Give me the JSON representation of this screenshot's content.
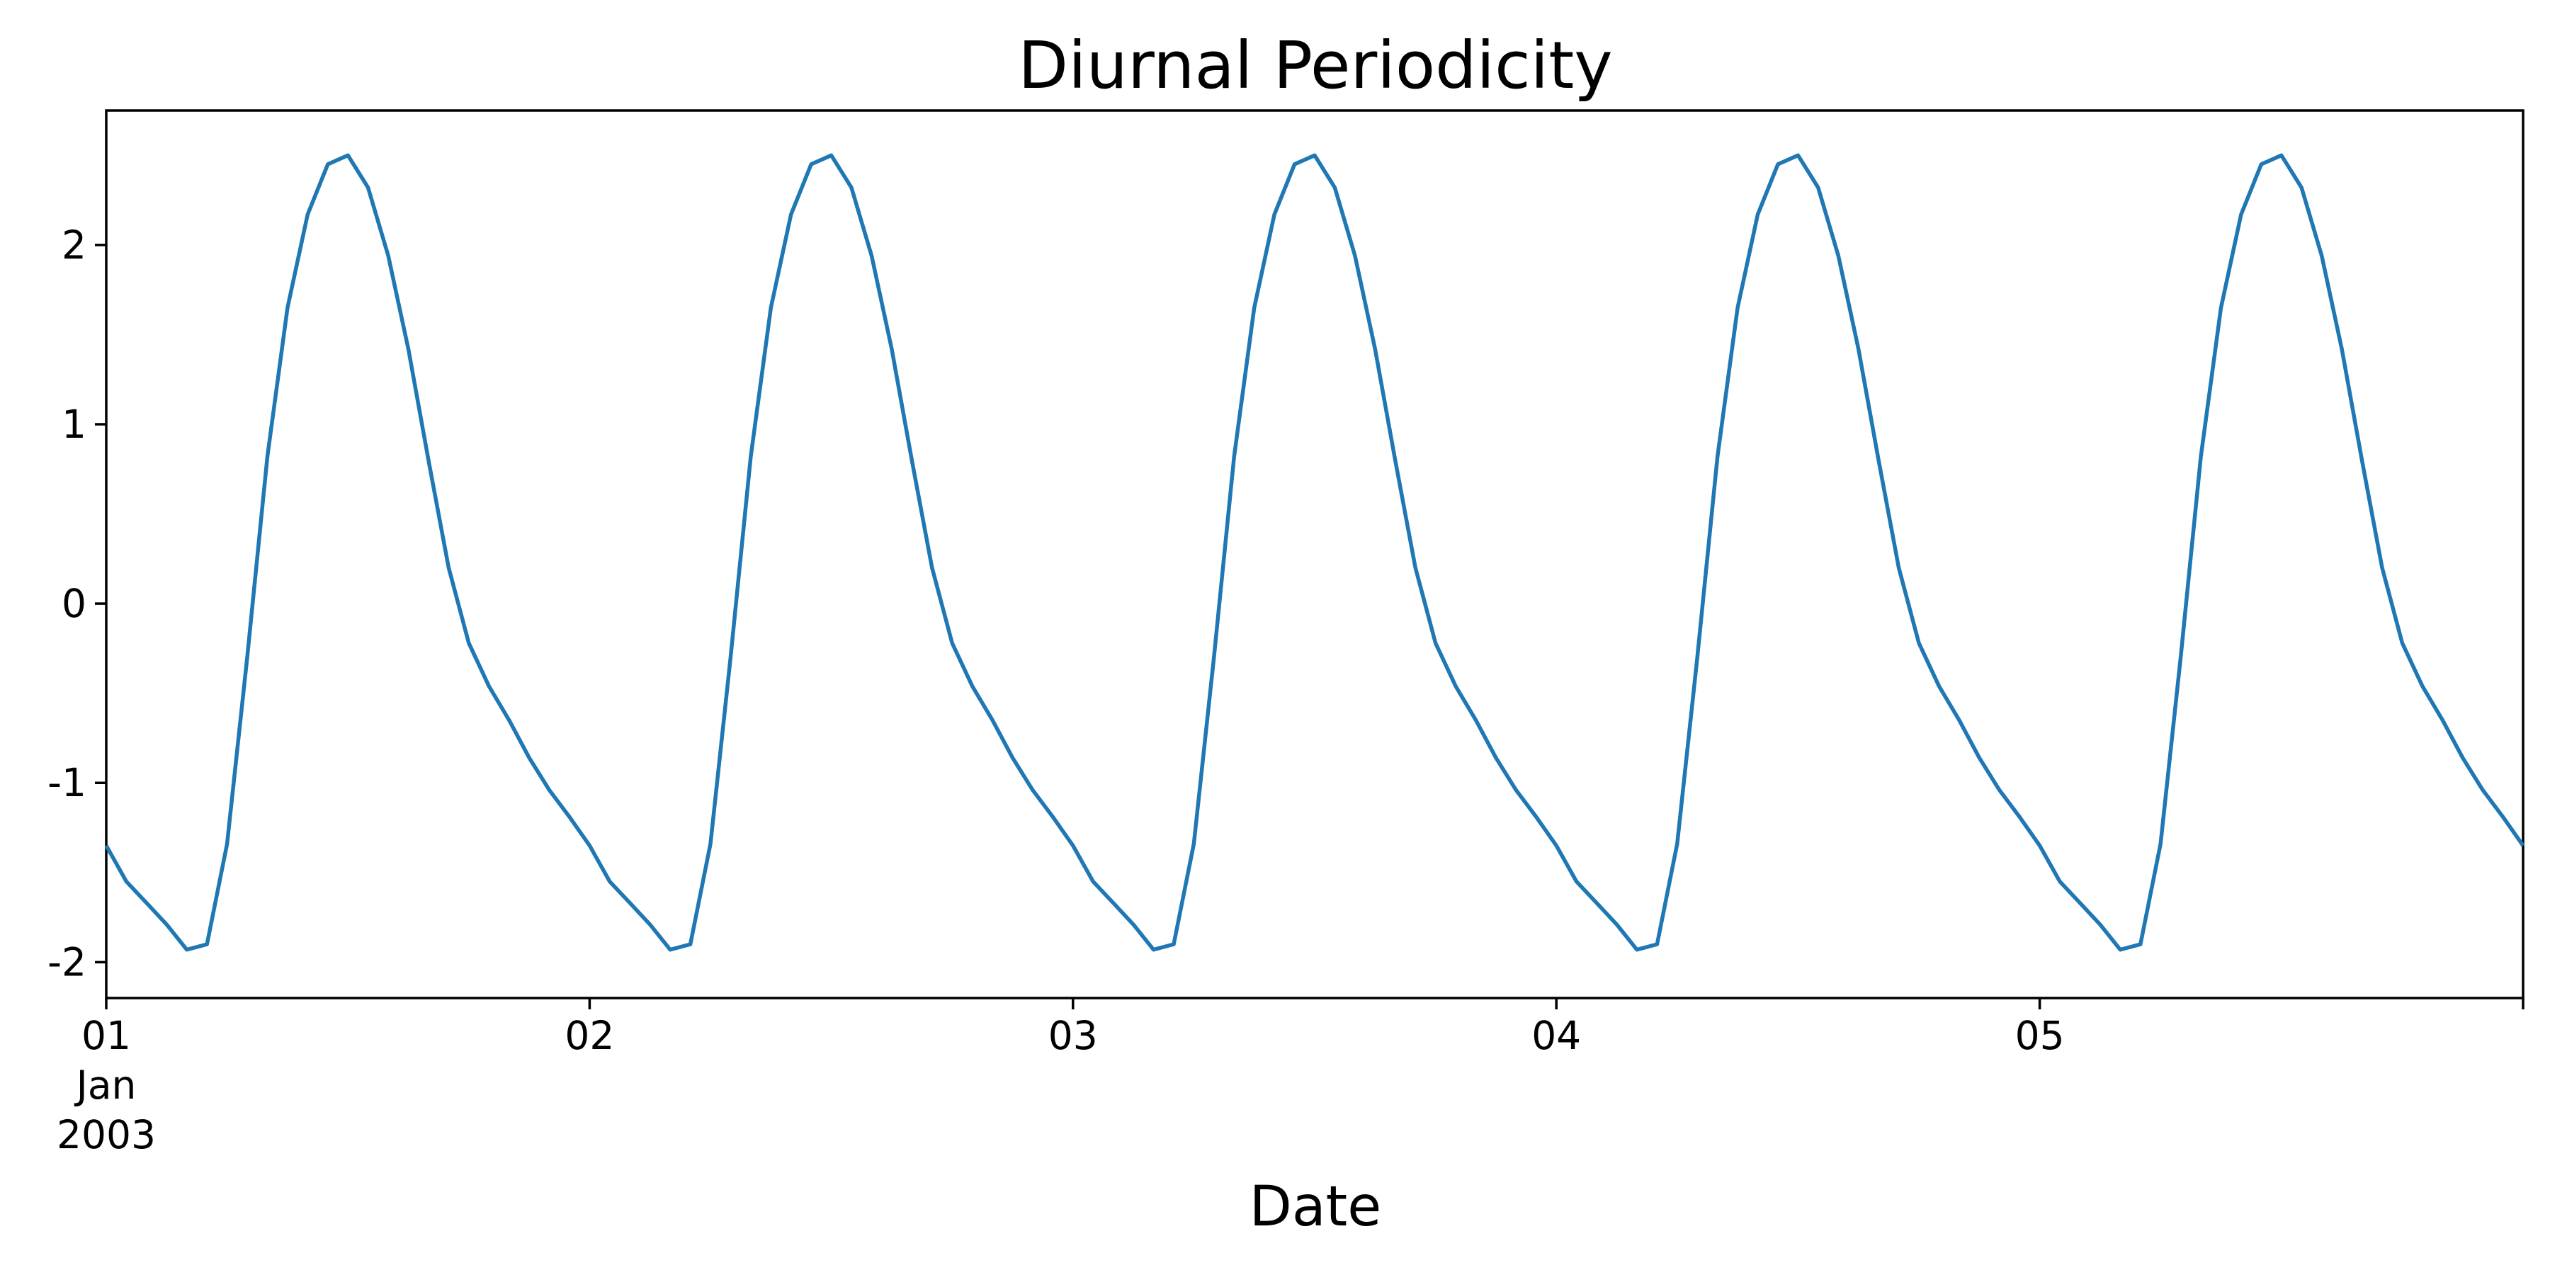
{
  "chart_data": {
    "type": "line",
    "title": "Diurnal Periodicity",
    "xlabel": "Date",
    "ylabel": "",
    "x_start": "2003-01-01 00:00",
    "x_end": "2003-01-06 00:00",
    "ylim": [
      -2.2,
      2.75
    ],
    "yticks": [
      {
        "value": 2,
        "label": "2"
      },
      {
        "value": 1,
        "label": "1"
      },
      {
        "value": 0,
        "label": "0"
      },
      {
        "value": -1,
        "label": "-1"
      },
      {
        "value": -2,
        "label": "-2"
      }
    ],
    "xticks": [
      {
        "date": "2003-01-01",
        "label": "01",
        "sub": [
          "Jan",
          "2003"
        ]
      },
      {
        "date": "2003-01-02",
        "label": "02"
      },
      {
        "date": "2003-01-03",
        "label": "03"
      },
      {
        "date": "2003-01-04",
        "label": "04"
      },
      {
        "date": "2003-01-05",
        "label": "05"
      }
    ],
    "grid": false,
    "series": [
      {
        "color": "#1f77b4",
        "hours": [
          0,
          1,
          2,
          3,
          4,
          5,
          6,
          7,
          8,
          9,
          10,
          11,
          12,
          13,
          14,
          15,
          16,
          17,
          18,
          19,
          20,
          21,
          22,
          23
        ],
        "values": [
          -1.35,
          -1.55,
          -1.67,
          -1.79,
          -1.93,
          -1.9,
          -1.34,
          -0.3,
          0.82,
          1.65,
          2.17,
          2.45,
          2.5,
          2.32,
          1.94,
          1.42,
          0.8,
          0.2,
          -0.22,
          -0.46,
          -0.65,
          -0.86,
          -1.04,
          -1.19
        ]
      }
    ]
  }
}
